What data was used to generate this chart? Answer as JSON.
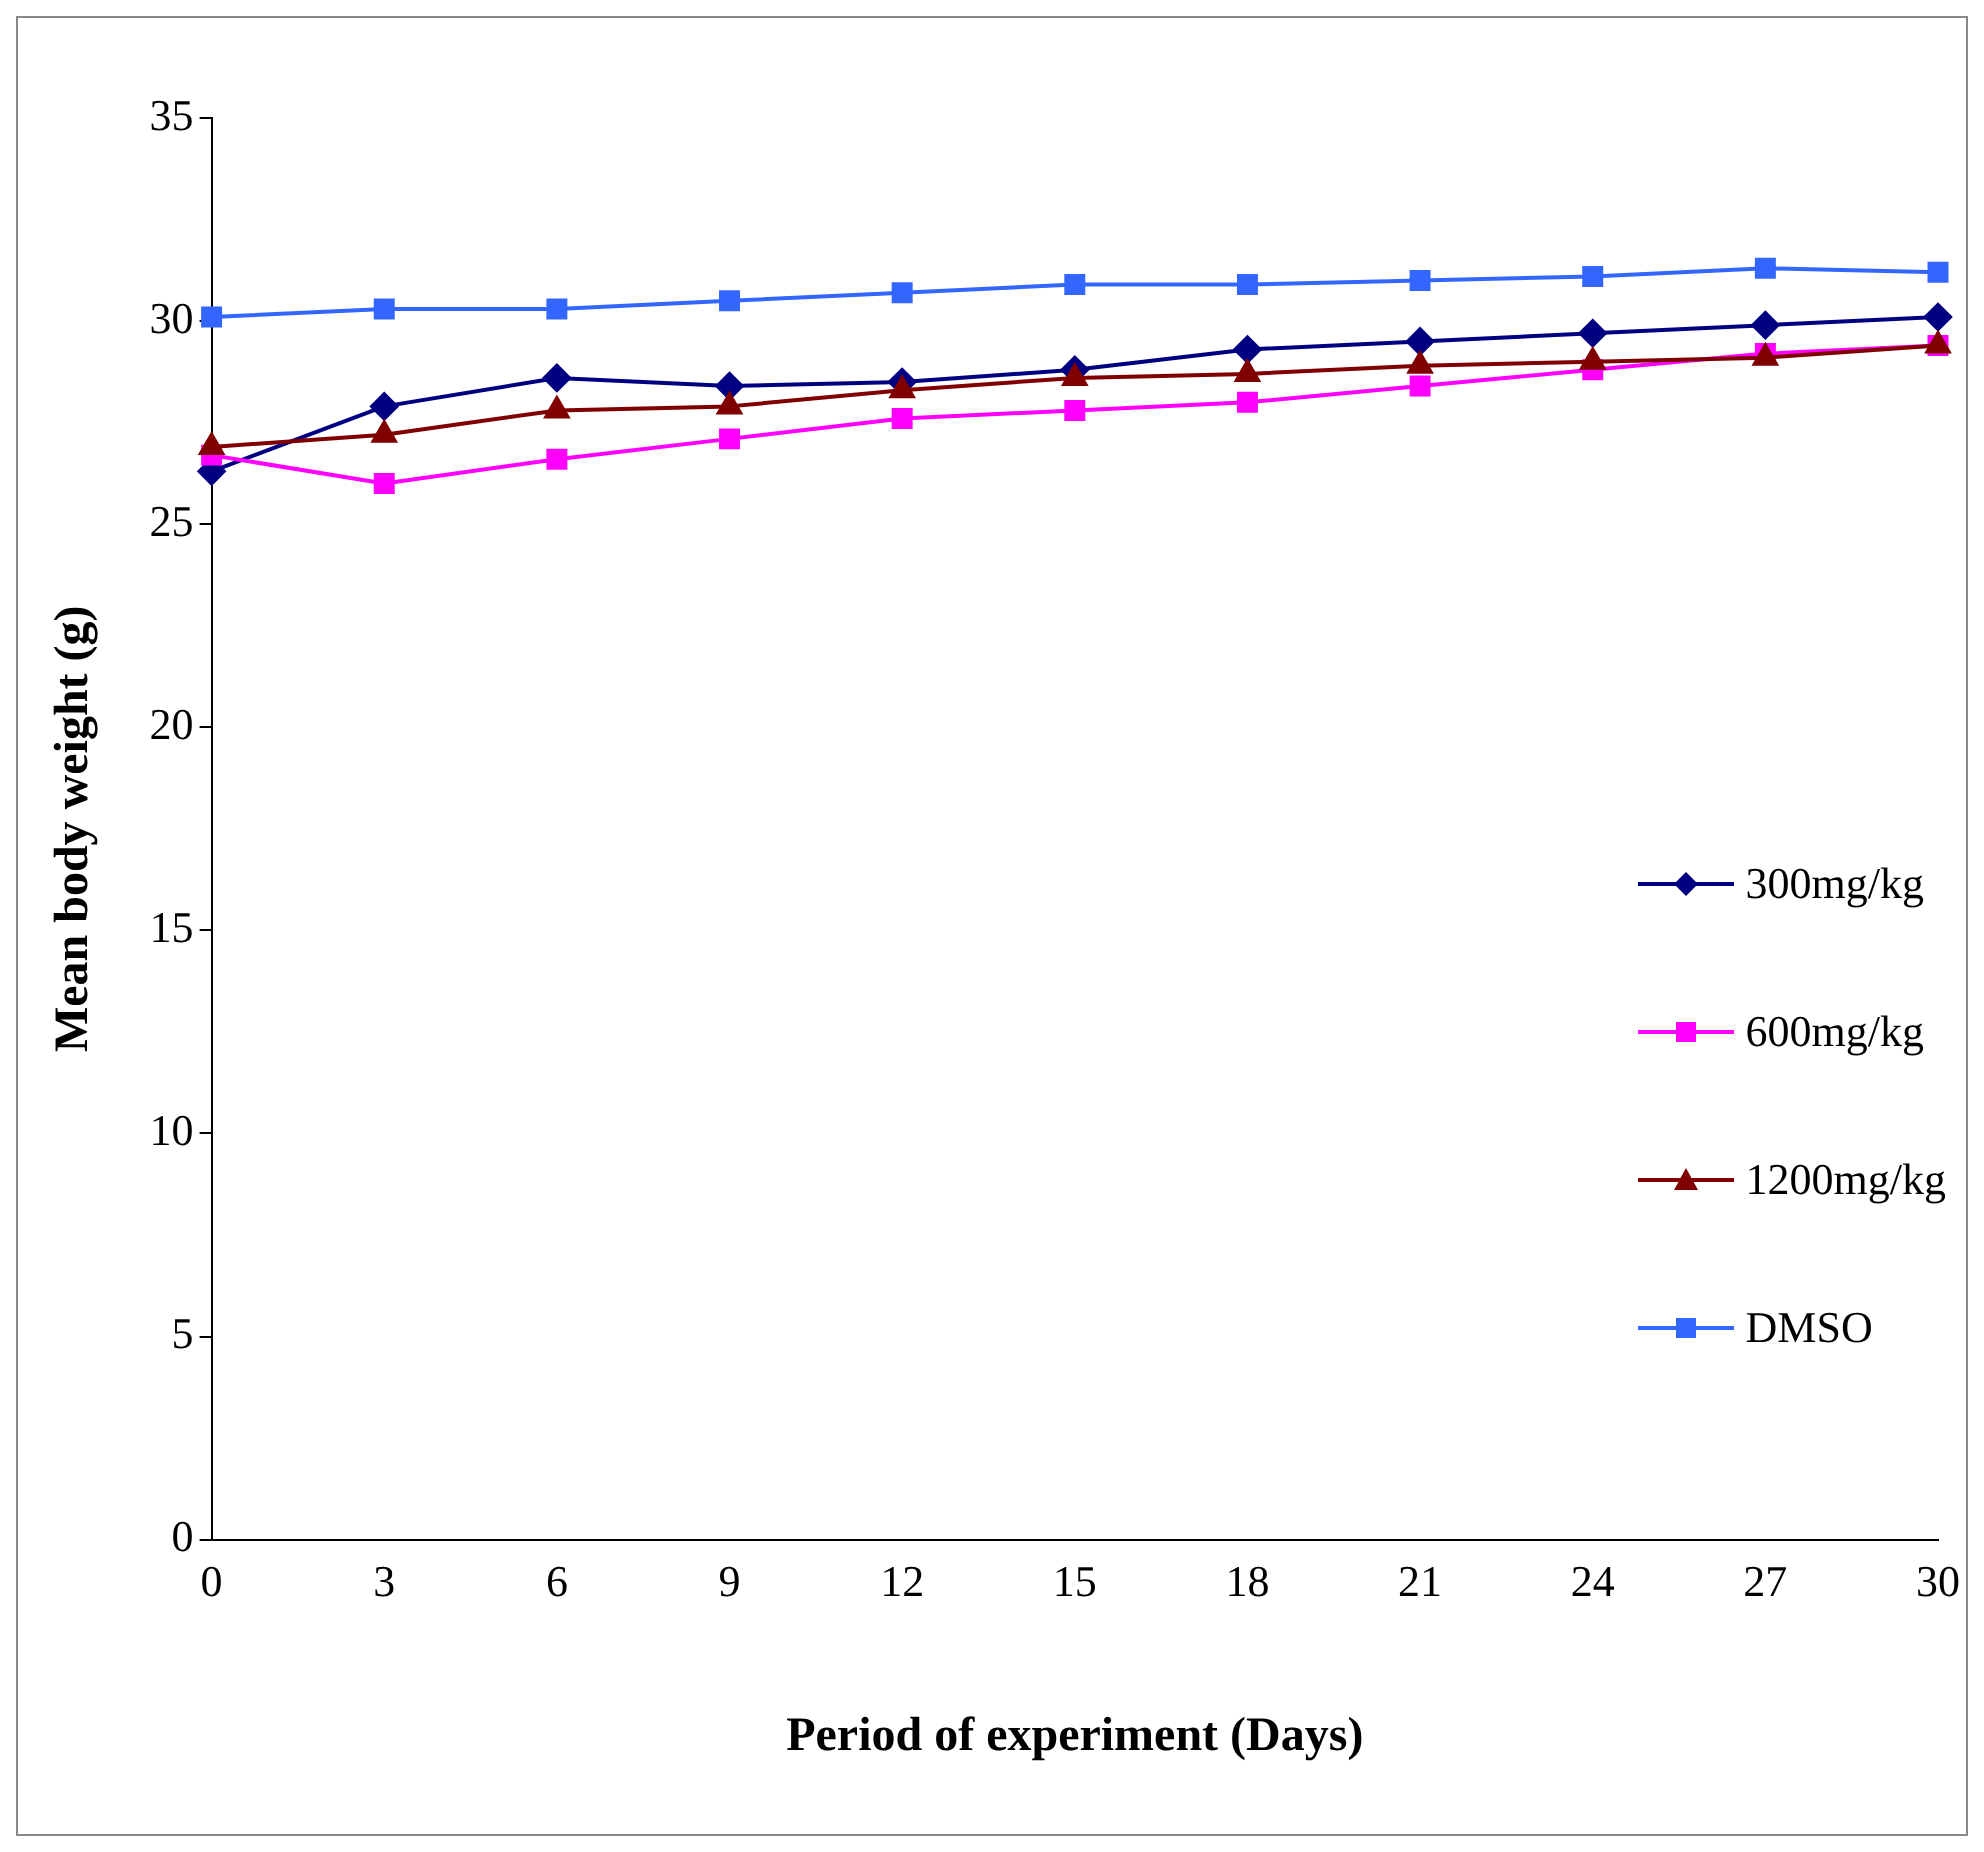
{
  "chart_data": {
    "type": "line",
    "xlabel": "Period of experiment (Days)",
    "ylabel": "Mean body weight (g)",
    "categories": [
      "0",
      "3",
      "6",
      "9",
      "12",
      "15",
      "18",
      "21",
      "24",
      "27",
      "30"
    ],
    "ylim": [
      0,
      35
    ],
    "yticks": [
      0,
      5,
      10,
      15,
      20,
      25,
      30,
      35
    ],
    "grid": false,
    "legend": "right",
    "line_style": "solid",
    "series": [
      {
        "name": "300mg/kg",
        "color": "#000080",
        "marker": "diamond",
        "values": [
          26.3,
          27.9,
          28.6,
          28.4,
          28.5,
          28.8,
          29.3,
          29.5,
          29.7,
          29.9,
          30.1
        ]
      },
      {
        "name": "600mg/kg",
        "color": "#ff00ff",
        "marker": "square",
        "values": [
          26.7,
          26.0,
          26.6,
          27.1,
          27.6,
          27.8,
          28.0,
          28.4,
          28.8,
          29.2,
          29.4
        ]
      },
      {
        "name": "1200mg/kg",
        "color": "#800000",
        "marker": "triangle",
        "values": [
          26.9,
          27.2,
          27.8,
          27.9,
          28.3,
          28.6,
          28.7,
          28.9,
          29.0,
          29.1,
          29.4
        ]
      },
      {
        "name": "DMSO",
        "color": "#3366ff",
        "marker": "square",
        "values": [
          30.1,
          30.3,
          30.3,
          30.5,
          30.7,
          30.9,
          30.9,
          31.0,
          31.1,
          31.3,
          31.2
        ]
      }
    ]
  }
}
